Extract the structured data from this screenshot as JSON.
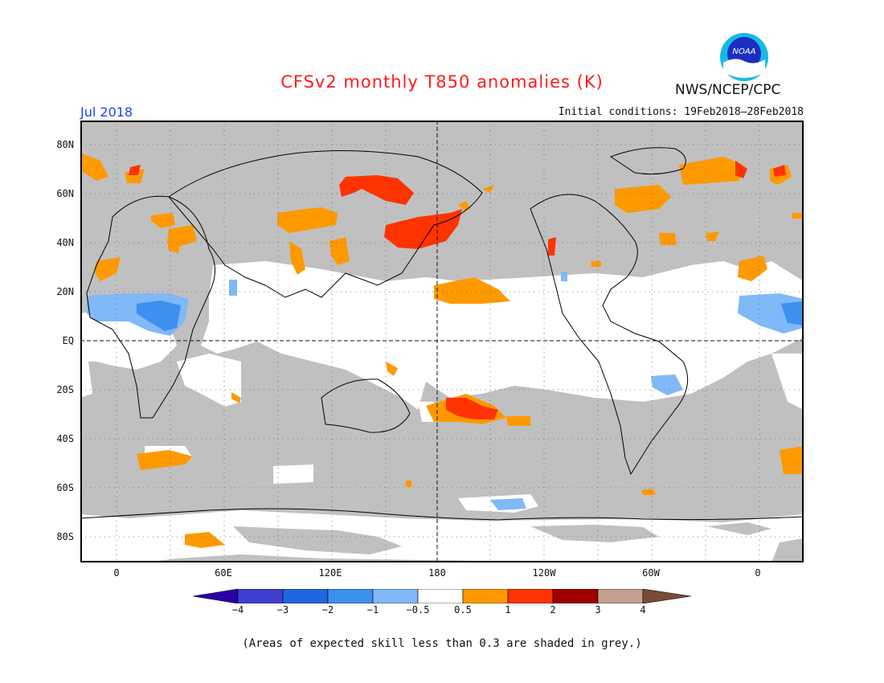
{
  "title": "CFSv2 monthly T850 anomalies (K)",
  "month": "Jul 2018",
  "agency": "NWS/NCEP/CPC",
  "logo_text": "NOAA",
  "initial_conditions": "Initial conditions: 19Feb2018–28Feb2018",
  "lat_labels": [
    "80N",
    "60N",
    "40N",
    "20N",
    "EQ",
    "20S",
    "40S",
    "60S",
    "80S"
  ],
  "lon_labels": [
    "0",
    "60E",
    "120E",
    "180",
    "120W",
    "60W",
    "0"
  ],
  "colorbar": {
    "ticks": [
      "−4",
      "−3",
      "−2",
      "−1",
      "−0.5",
      "0.5",
      "1",
      "2",
      "3",
      "4"
    ],
    "colors": [
      "#2b00a8",
      "#4040d0",
      "#1f66e0",
      "#3c90f0",
      "#80b8f8",
      "#ffffff",
      "#ff9900",
      "#ff3300",
      "#a00000",
      "#c4a090",
      "#7a4a38"
    ]
  },
  "note": "(Areas of expected skill less than 0.3 are shaded in grey.)",
  "colors": {
    "grey_skill": "#c0c0c0",
    "neutral": "#ffffff",
    "orange": "#ff9900",
    "red": "#ff3300",
    "light_blue": "#80b8f8",
    "blue": "#3c90f0"
  }
}
